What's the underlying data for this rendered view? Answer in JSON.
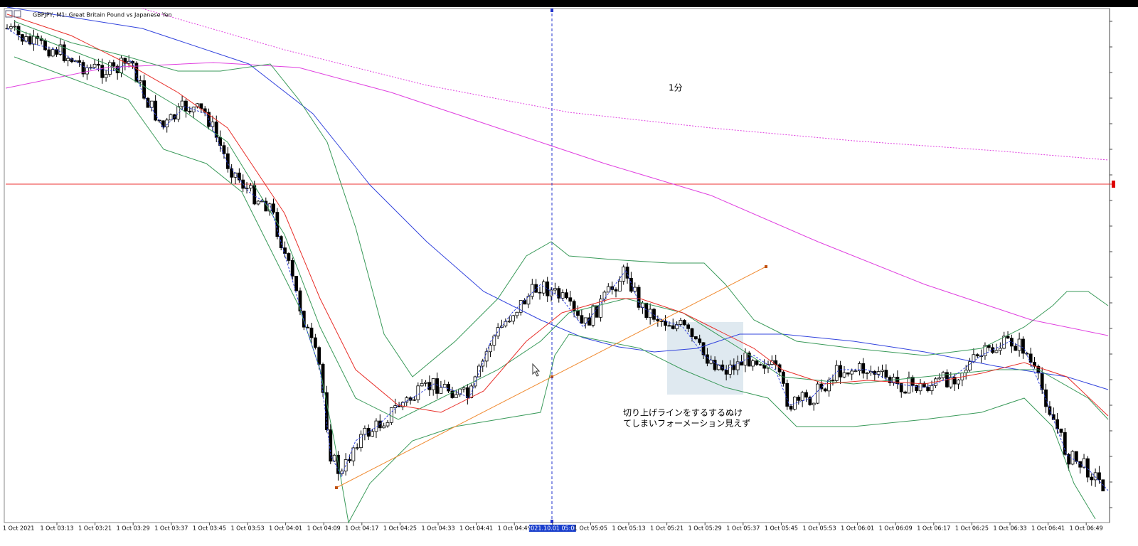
{
  "window": {
    "title": "GBPJPY, M1:  Great Britain Pound vs Japanese Yen"
  },
  "annotations": {
    "timeframe": "1分",
    "note": [
      "切り上げラインをするするぬけ",
      "てしまいフォーメーション見えず"
    ]
  },
  "time_axis": {
    "first": "1 Oct 2021",
    "labels": [
      "1 Oct 03:13",
      "1 Oct 03:21",
      "1 Oct 03:29",
      "1 Oct 03:37",
      "1 Oct 03:45",
      "1 Oct 03:53",
      "1 Oct 04:01",
      "1 Oct 04:09",
      "1 Oct 04:17",
      "1 Oct 04:25",
      "1 Oct 04:33",
      "1 Oct 04:41",
      "1 Oct 04:49",
      "2021.10.01 05:00",
      "1 Oct 05:05",
      "1 Oct 05:13",
      "1 Oct 05:21",
      "1 Oct 05:29",
      "1 Oct 05:37",
      "1 Oct 05:45",
      "1 Oct 05:53",
      "1 Oct 06:01",
      "1 Oct 06:09",
      "1 Oct 06:17",
      "1 Oct 06:25",
      "1 Oct 06:33",
      "1 Oct 06:41",
      "1 Oct 06:49"
    ]
  }
}
